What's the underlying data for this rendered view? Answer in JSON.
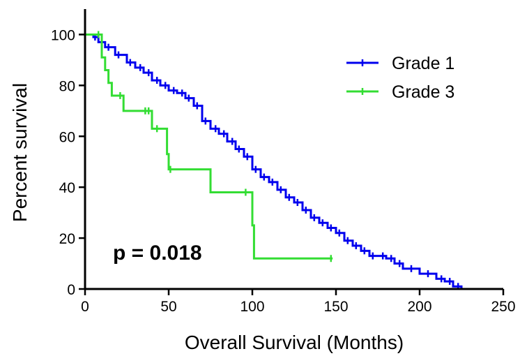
{
  "chart_data": {
    "type": "line",
    "xlabel": "Overall Survival (Months)",
    "ylabel": "Percent survival",
    "xlim": [
      0,
      250
    ],
    "ylim": [
      0,
      110
    ],
    "x_ticks": [
      0,
      50,
      100,
      150,
      200,
      250
    ],
    "y_ticks": [
      0,
      20,
      40,
      60,
      80,
      100
    ],
    "grid": false,
    "legend_position": "top-right",
    "annotation": "p = 0.018",
    "series": [
      {
        "name": "Grade 1",
        "color": "#0000ee",
        "step": true,
        "points": [
          [
            0,
            100
          ],
          [
            5,
            99
          ],
          [
            8,
            97
          ],
          [
            12,
            95
          ],
          [
            18,
            92
          ],
          [
            25,
            89
          ],
          [
            30,
            87
          ],
          [
            35,
            85
          ],
          [
            40,
            82
          ],
          [
            45,
            80
          ],
          [
            50,
            78
          ],
          [
            55,
            77
          ],
          [
            60,
            75
          ],
          [
            65,
            72
          ],
          [
            70,
            66
          ],
          [
            75,
            63
          ],
          [
            80,
            61
          ],
          [
            85,
            58
          ],
          [
            90,
            55
          ],
          [
            95,
            52
          ],
          [
            100,
            47
          ],
          [
            105,
            44
          ],
          [
            110,
            42
          ],
          [
            115,
            39
          ],
          [
            120,
            36
          ],
          [
            125,
            34
          ],
          [
            130,
            31
          ],
          [
            135,
            28
          ],
          [
            140,
            26
          ],
          [
            145,
            24
          ],
          [
            150,
            22
          ],
          [
            155,
            19
          ],
          [
            160,
            17
          ],
          [
            165,
            15
          ],
          [
            170,
            13
          ],
          [
            180,
            12
          ],
          [
            185,
            10
          ],
          [
            190,
            8
          ],
          [
            200,
            6
          ],
          [
            210,
            4
          ],
          [
            215,
            3
          ],
          [
            220,
            1
          ],
          [
            225,
            0
          ]
        ],
        "censor_x": [
          6,
          10,
          14,
          20,
          27,
          33,
          38,
          43,
          48,
          53,
          58,
          62,
          67,
          72,
          78,
          83,
          88,
          92,
          97,
          102,
          107,
          112,
          117,
          122,
          127,
          132,
          137,
          142,
          147,
          152,
          157,
          162,
          167,
          172,
          178,
          183,
          188,
          195,
          205,
          213,
          218,
          223
        ]
      },
      {
        "name": "Grade 3",
        "color": "#33dd33",
        "step": true,
        "points": [
          [
            0,
            100
          ],
          [
            9,
            100
          ],
          [
            10,
            91
          ],
          [
            12,
            86
          ],
          [
            14,
            81
          ],
          [
            16,
            76
          ],
          [
            23,
            70
          ],
          [
            40,
            63
          ],
          [
            49,
            53
          ],
          [
            50,
            47
          ],
          [
            75,
            38
          ],
          [
            98,
            38
          ],
          [
            100,
            25
          ],
          [
            101,
            12
          ],
          [
            148,
            12
          ]
        ],
        "censor_x": [
          8,
          21,
          36,
          38,
          43,
          51,
          96,
          147
        ]
      }
    ]
  }
}
